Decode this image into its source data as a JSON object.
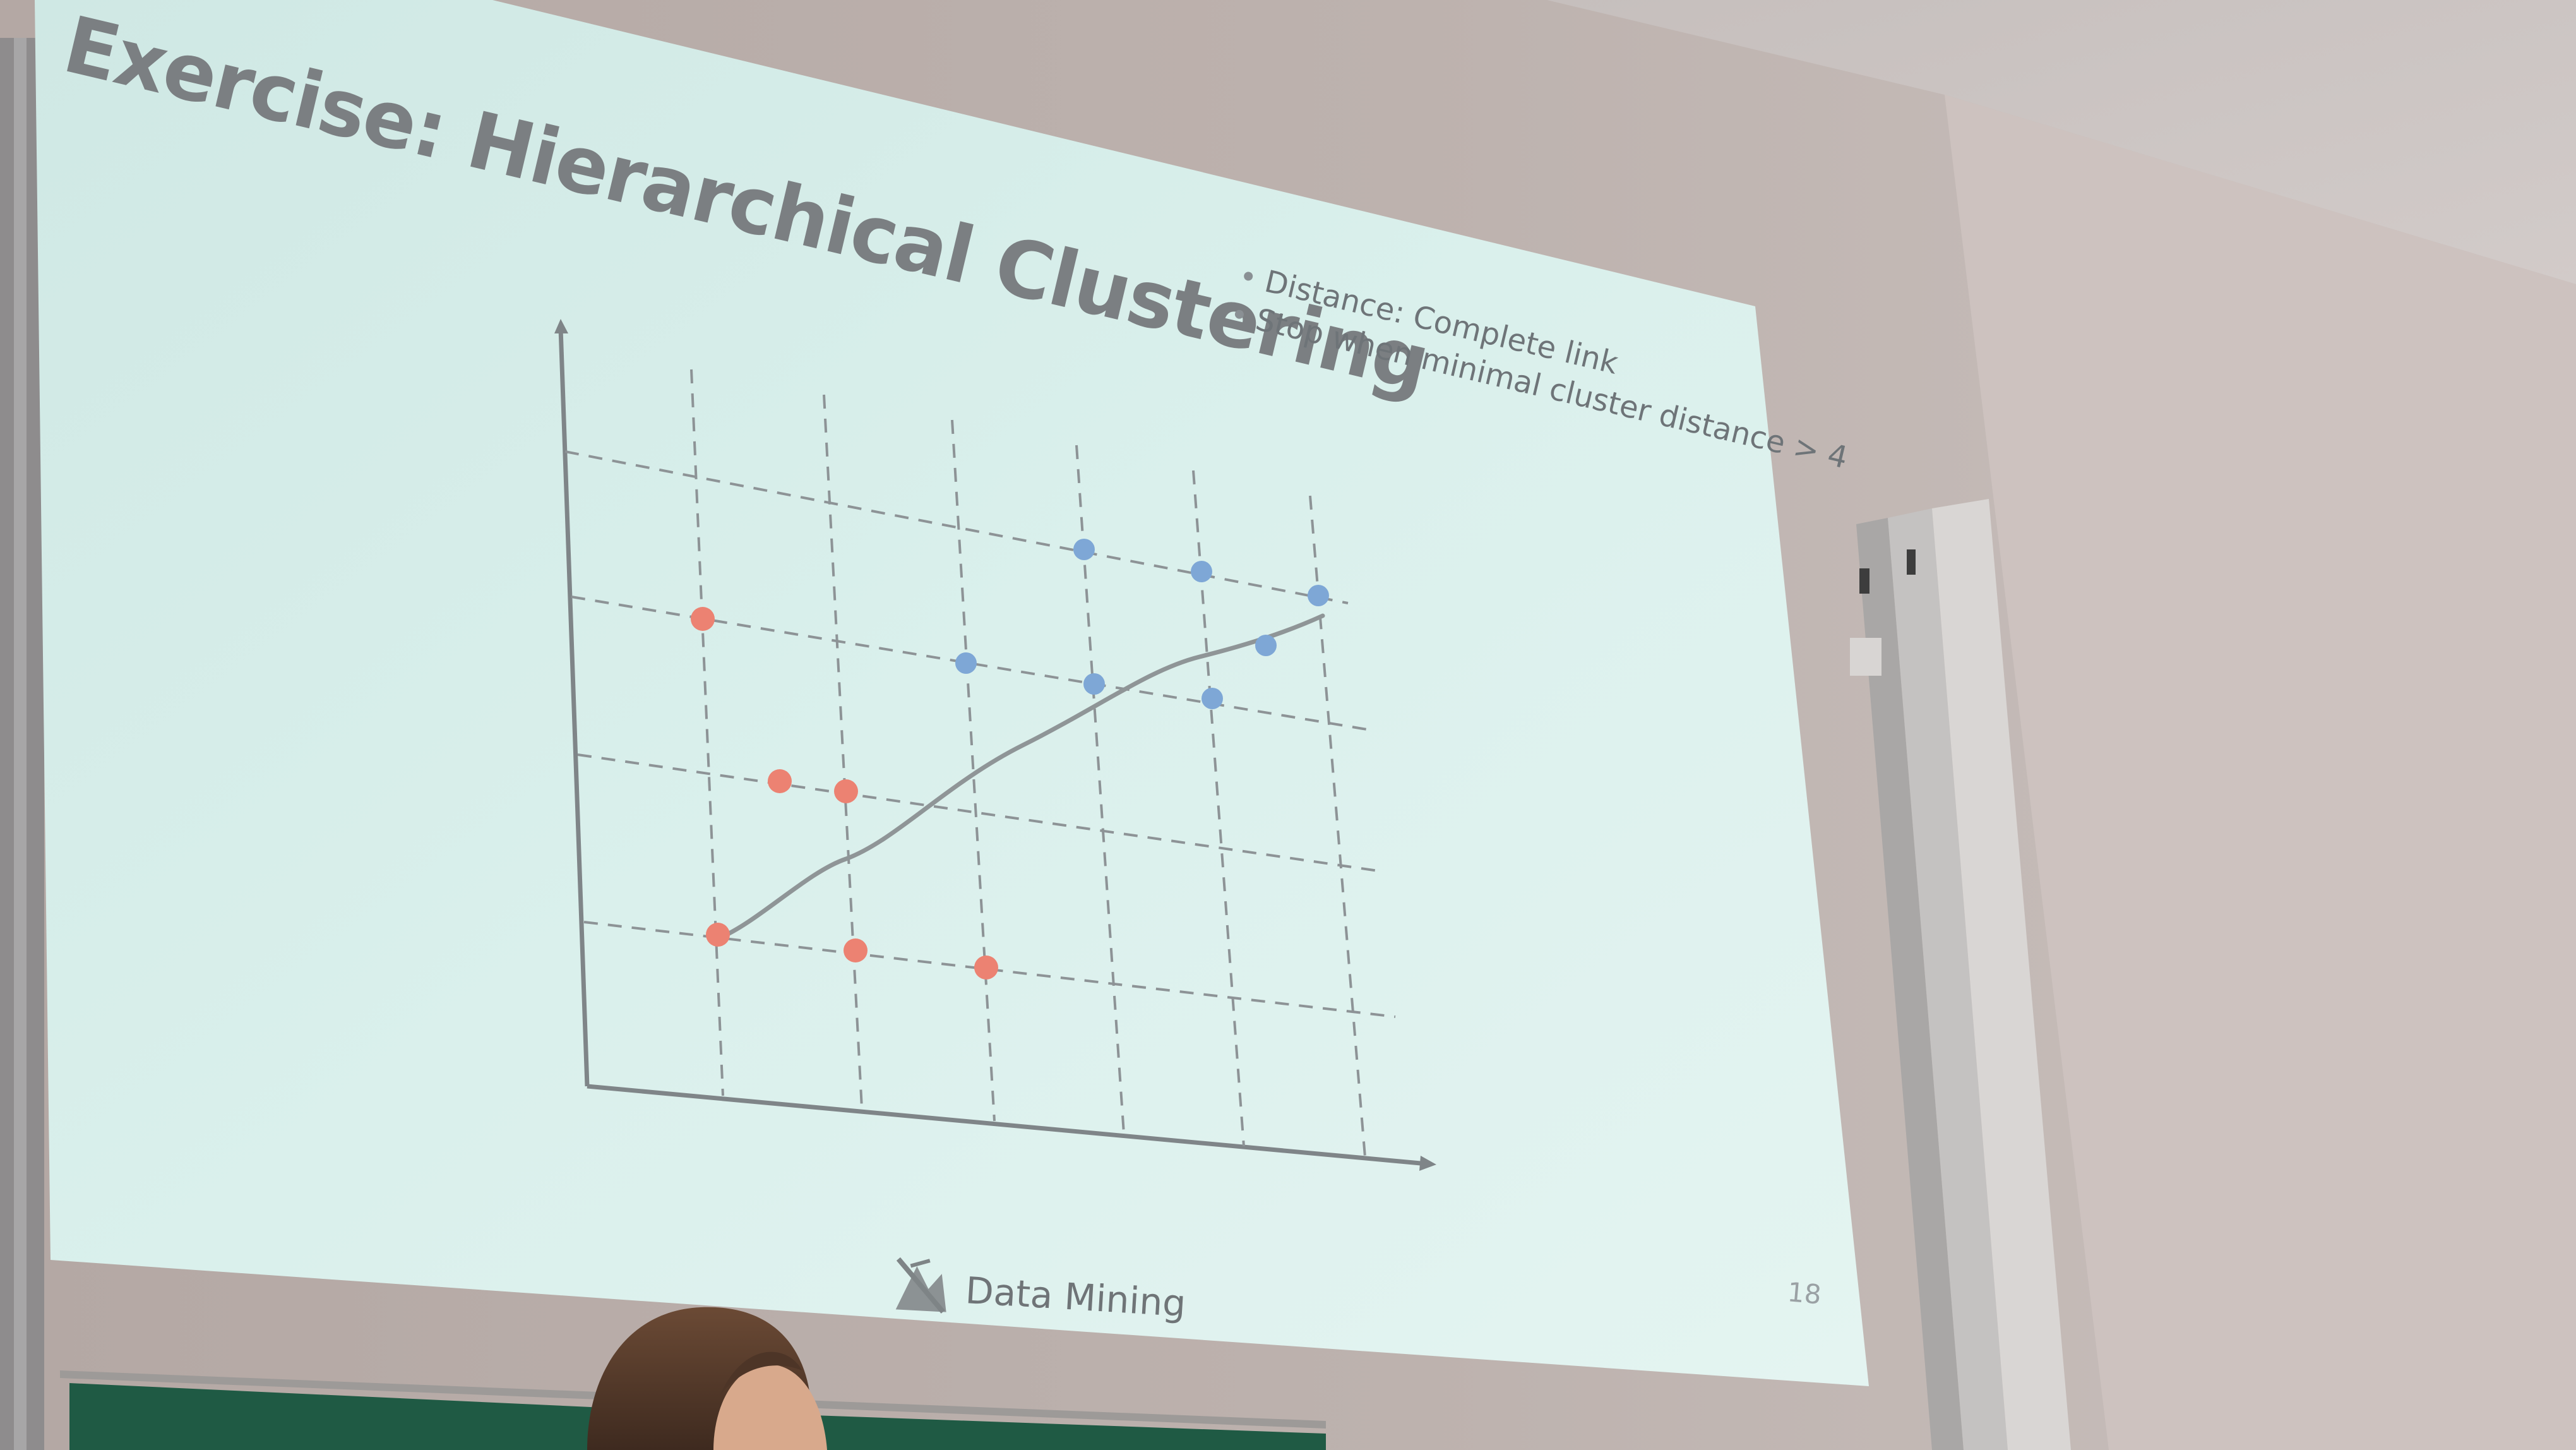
{
  "slide": {
    "title": "Exercise: Hierarchical Clustering",
    "bullets": [
      "Distance: Complete link",
      "Stop when minimal cluster distance > 4"
    ],
    "footer_label": "Data Mining",
    "page_number": "18"
  },
  "plot": {
    "grid_columns": 6,
    "grid_rows": 4,
    "red_points": [
      {
        "col": 1,
        "row": 3
      },
      {
        "col": 1.6,
        "row": 2
      },
      {
        "col": 2.1,
        "row": 2
      },
      {
        "col": 1,
        "row": 1
      },
      {
        "col": 2,
        "row": 1
      },
      {
        "col": 3,
        "row": 1
      }
    ],
    "blue_points": [
      {
        "col": 4,
        "row": 4
      },
      {
        "col": 5,
        "row": 4
      },
      {
        "col": 6,
        "row": 4
      },
      {
        "col": 3,
        "row": 3
      },
      {
        "col": 4,
        "row": 3
      },
      {
        "col": 5,
        "row": 3
      },
      {
        "col": 5.5,
        "row": 3.6
      }
    ]
  },
  "colors": {
    "red": "#ec8272",
    "blue": "#7ea7d6",
    "screen": "#d8eeea",
    "wall": "#b8aeaa",
    "board": "#1f5a44"
  }
}
